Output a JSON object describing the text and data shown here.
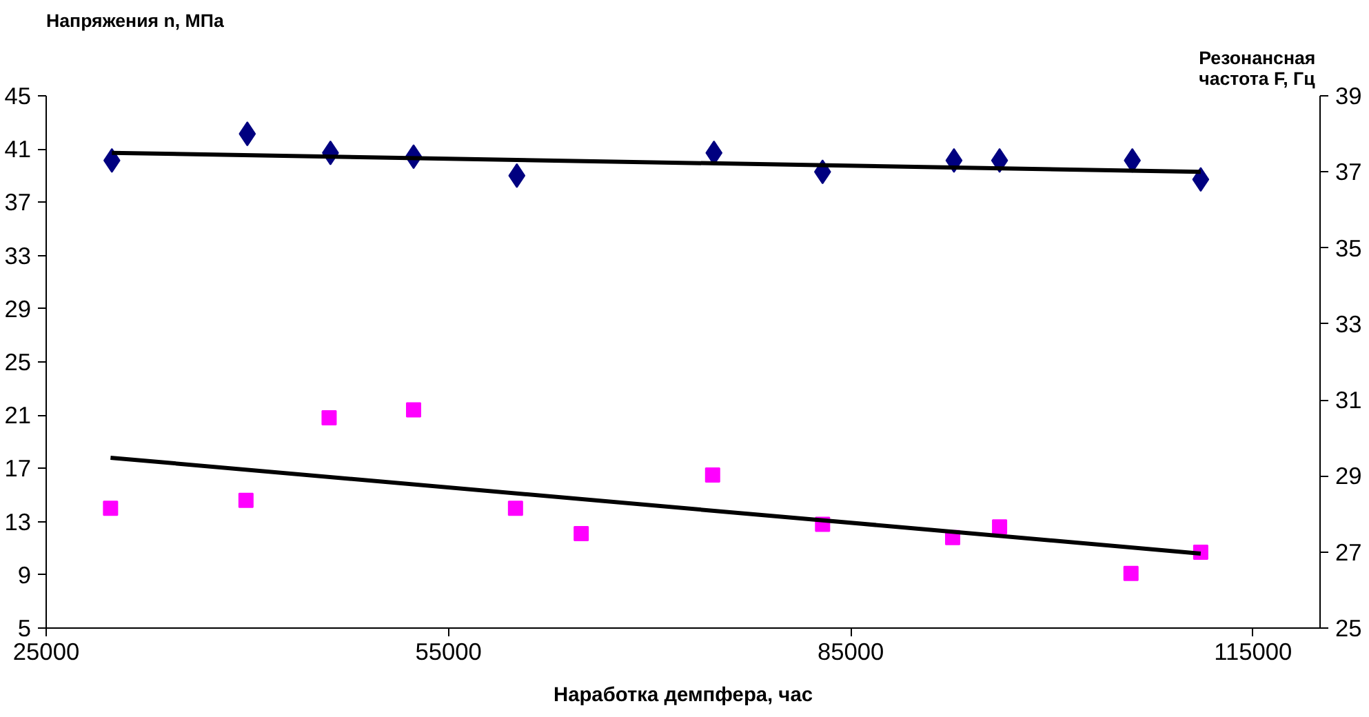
{
  "chart_data": {
    "type": "scatter",
    "xlabel": "Наработка демпфера, час",
    "ylabel": "Напряжения n, МПа",
    "y2label": "Резонансная\nчастота  F, Гц",
    "xlim": [
      25000,
      120000
    ],
    "xticks": [
      25000,
      55000,
      85000,
      115000
    ],
    "ylim": [
      5,
      45
    ],
    "yticks": [
      5,
      9,
      13,
      17,
      21,
      25,
      29,
      33,
      37,
      41,
      45
    ],
    "y2lim": [
      25,
      39
    ],
    "y2ticks": [
      25,
      27,
      29,
      31,
      33,
      35,
      37,
      39
    ],
    "grid": false,
    "series": [
      {
        "axis": "y2",
        "marker": "diamond",
        "color": "#000080",
        "x": [
          29900,
          40000,
          46200,
          52400,
          60100,
          74800,
          82900,
          92700,
          96100,
          106000,
          111100
        ],
        "values": [
          37.3,
          38.0,
          37.5,
          37.4,
          36.9,
          37.5,
          37.0,
          37.3,
          37.3,
          37.3,
          36.8
        ]
      },
      {
        "axis": "y",
        "marker": "square",
        "color": "#ff00ff",
        "x": [
          29800,
          39900,
          46100,
          52400,
          60000,
          64900,
          74700,
          82900,
          92600,
          96100,
          105900,
          111100
        ],
        "values": [
          14.0,
          14.6,
          20.8,
          21.4,
          14.0,
          12.1,
          16.5,
          12.8,
          11.8,
          12.6,
          9.1,
          10.7
        ]
      },
      {
        "type": "line",
        "axis": "y2",
        "color": "#000000",
        "x": [
          29900,
          111100
        ],
        "values": [
          37.5,
          37.0
        ]
      },
      {
        "type": "line",
        "axis": "y",
        "color": "#000000",
        "x": [
          29800,
          111100
        ],
        "values": [
          17.8,
          10.6
        ]
      }
    ]
  }
}
